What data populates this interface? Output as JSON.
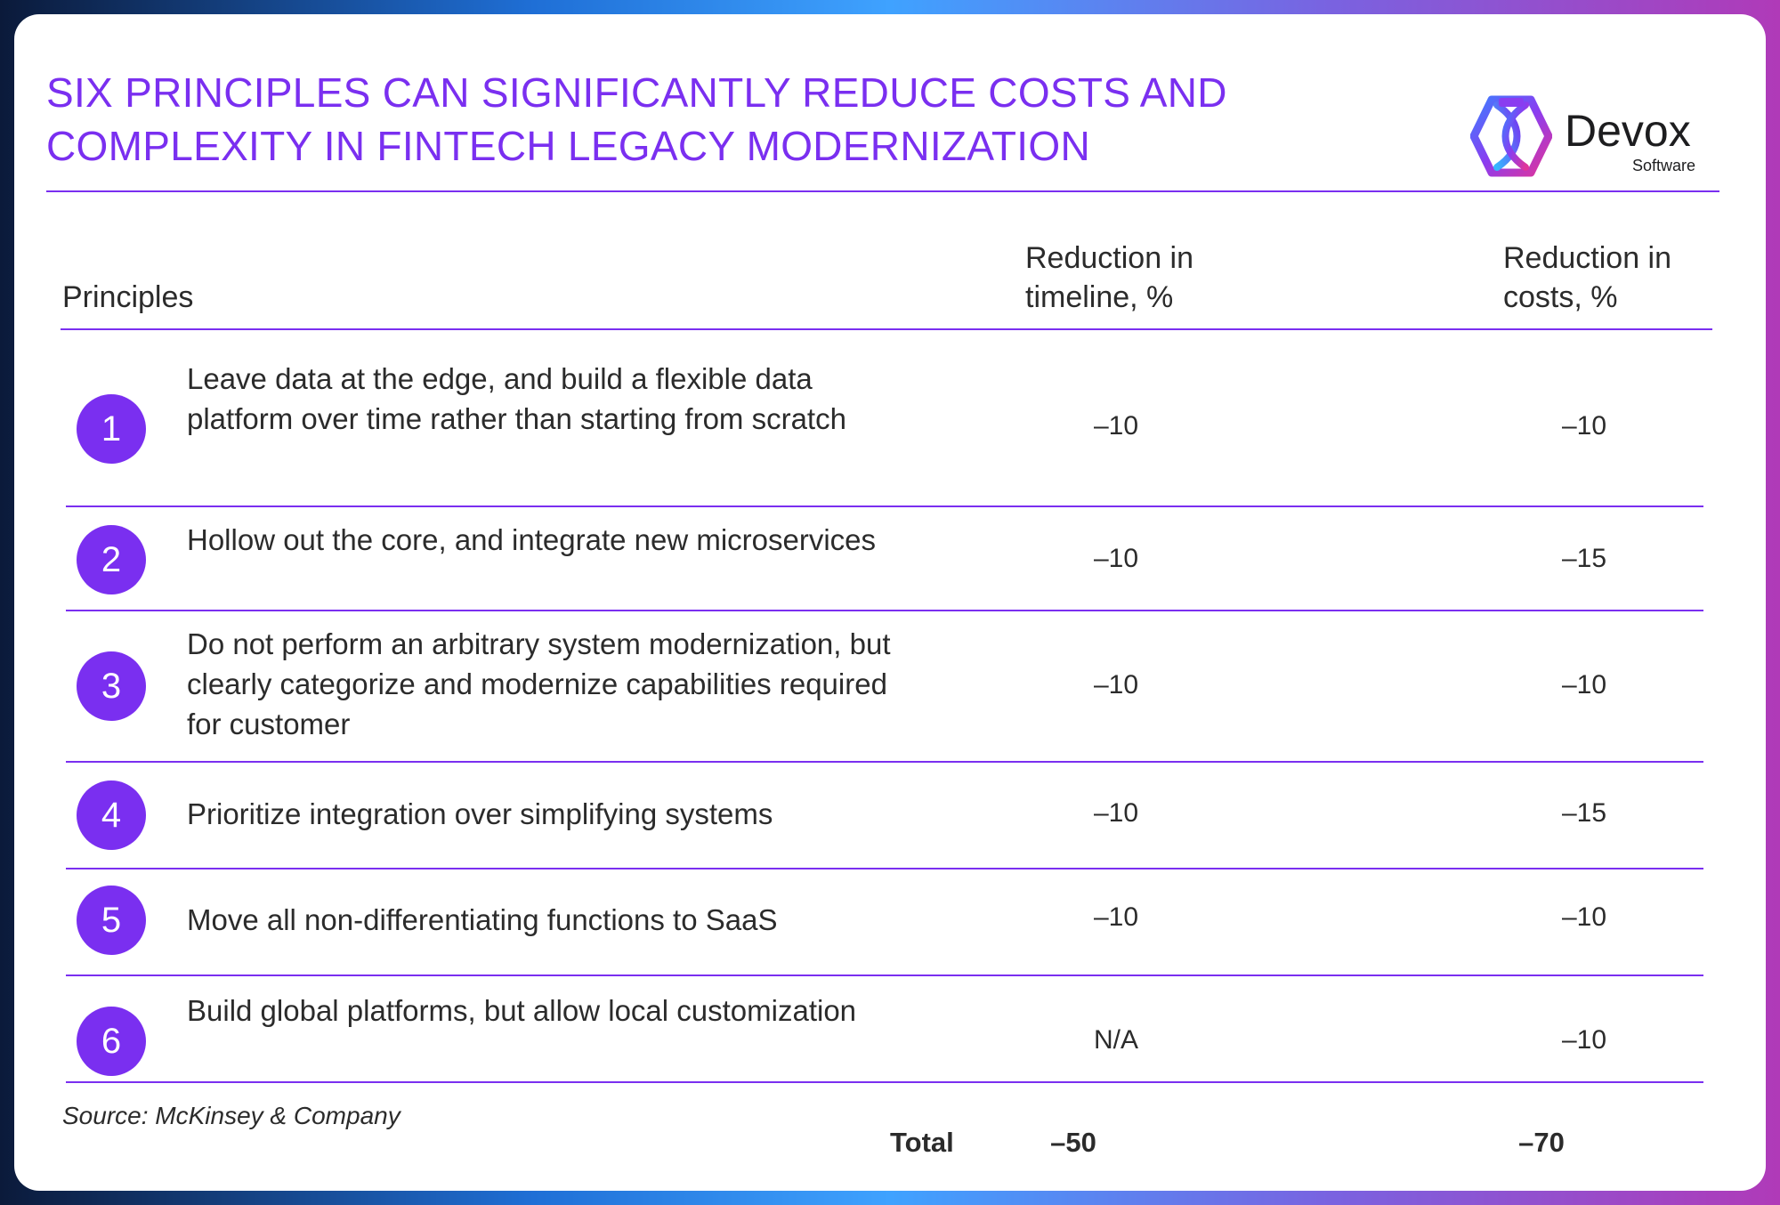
{
  "colors": {
    "accent": "#7a2ff0",
    "text": "#2b2b2b",
    "card": "#ffffff"
  },
  "title_lines": [
    "SIX PRINCIPLES CAN SIGNIFICANTLY REDUCE COSTS AND",
    "COMPLEXITY IN FINTECH LEGACY MODERNIZATION"
  ],
  "logo": {
    "icon": "devox-logo-icon",
    "word": "Devox",
    "sub": "Software"
  },
  "table": {
    "headers": {
      "principles": "Principles",
      "timeline_1": "Reduction in",
      "timeline_2": "timeline, %",
      "costs_1": "Reduction in",
      "costs_2": "costs, %"
    },
    "rows": [
      {
        "num": "1",
        "text": "Leave data at the edge, and build a flexible data platform over time rather than starting from scratch",
        "timeline": "–10",
        "costs": "–10"
      },
      {
        "num": "2",
        "text": "Hollow out the core, and integrate new microservices",
        "timeline": "–10",
        "costs": "–15"
      },
      {
        "num": "3",
        "text": "Do not perform an arbitrary system modernization, but clearly categorize and modernize capabilities required for customer",
        "timeline": "–10",
        "costs": "–10"
      },
      {
        "num": "4",
        "text": "Prioritize integration over simplifying systems",
        "timeline": "–10",
        "costs": "–15"
      },
      {
        "num": "5",
        "text": "Move all non-differentiating functions to SaaS",
        "timeline": "–10",
        "costs": "–10"
      },
      {
        "num": "6",
        "text": "Build global platforms, but allow local customization",
        "timeline": "N/A",
        "costs": "–10"
      }
    ],
    "total": {
      "label": "Total",
      "timeline": "–50",
      "costs": "–70"
    }
  },
  "source": "Source: McKinsey & Company"
}
